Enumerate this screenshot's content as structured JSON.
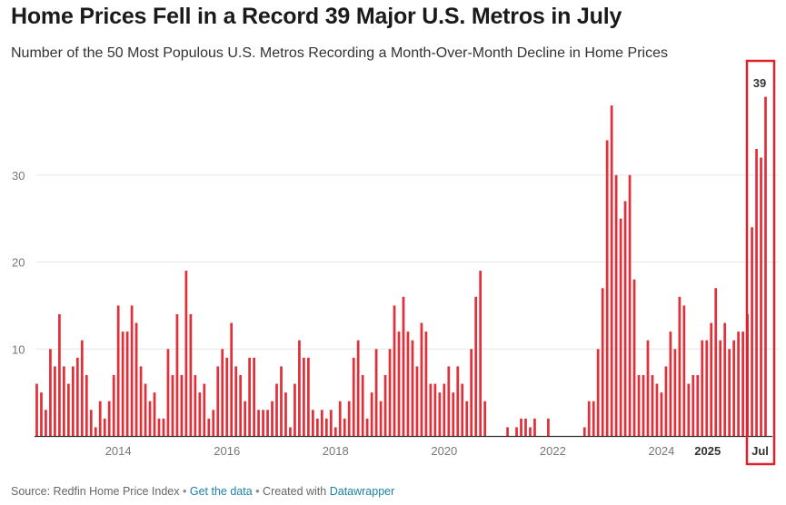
{
  "title": "Home Prices Fell in a Record 39 Major U.S. Metros in July",
  "subtitle": "Number of the 50 Most Populous U.S. Metros Recording a Month-Over-Month Decline in Home Prices",
  "footer": {
    "source": "Source: Redfin Home Price Index",
    "separator": "•",
    "get_data": "Get the data",
    "created_with": "Created with",
    "datawrapper": "Datawrapper"
  },
  "colors": {
    "bar": "#e0303a",
    "highlight_box": "#e0202a",
    "grid": "#e6e6e6",
    "axis": "#333333",
    "tick_text": "#777777"
  },
  "chart_data": {
    "type": "bar",
    "x_start": "2012-07",
    "x_end": "2025-07",
    "x_ticks": [
      "2014",
      "2016",
      "2018",
      "2020",
      "2022",
      "2024",
      "2025",
      "Jul"
    ],
    "y_ticks": [
      10,
      20,
      30
    ],
    "ylim": [
      0,
      40
    ],
    "grid": "horizontal",
    "highlight_label": "39",
    "values": [
      6,
      5,
      3,
      10,
      8,
      14,
      8,
      6,
      8,
      9,
      11,
      7,
      3,
      1,
      4,
      2,
      4,
      7,
      15,
      12,
      12,
      15,
      13,
      8,
      6,
      4,
      5,
      2,
      2,
      10,
      7,
      14,
      7,
      19,
      14,
      7,
      5,
      6,
      2,
      3,
      8,
      10,
      9,
      13,
      8,
      7,
      4,
      9,
      9,
      3,
      3,
      3,
      4,
      6,
      8,
      5,
      1,
      6,
      11,
      9,
      9,
      3,
      2,
      3,
      2,
      3,
      1,
      4,
      2,
      4,
      9,
      11,
      7,
      2,
      5,
      10,
      4,
      7,
      10,
      15,
      12,
      16,
      12,
      11,
      8,
      13,
      12,
      6,
      6,
      5,
      6,
      8,
      5,
      8,
      6,
      4,
      10,
      16,
      19,
      4,
      0,
      0,
      0,
      0,
      1,
      0,
      1,
      2,
      2,
      1,
      2,
      0,
      0,
      2,
      0,
      0,
      0,
      0,
      0,
      0,
      0,
      1,
      4,
      4,
      10,
      17,
      34,
      38,
      30,
      25,
      27,
      30,
      18,
      7,
      7,
      11,
      7,
      6,
      5,
      8,
      12,
      10,
      16,
      15,
      6,
      7,
      7,
      11,
      11,
      13,
      17,
      11,
      13,
      10,
      11,
      12,
      12,
      14,
      24,
      33,
      32,
      39
    ]
  }
}
